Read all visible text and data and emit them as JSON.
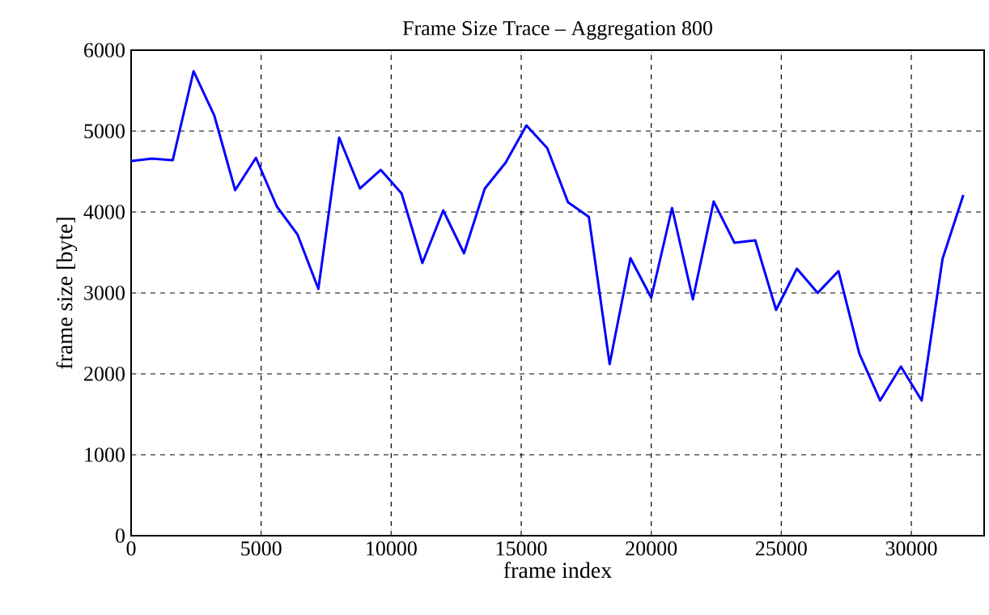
{
  "chart_data": {
    "type": "line",
    "title": "Frame Size Trace – Aggregation 800",
    "xlabel": "frame index",
    "ylabel": "frame size [byte]",
    "x": [
      0,
      800,
      1600,
      2400,
      3200,
      4000,
      4800,
      5600,
      6400,
      7200,
      8000,
      8800,
      9600,
      10400,
      11200,
      12000,
      12800,
      13600,
      14400,
      15200,
      16000,
      16800,
      17600,
      18400,
      19200,
      20000,
      20800,
      21600,
      22400,
      23200,
      24000,
      24800,
      25600,
      26400,
      27200,
      28000,
      28800,
      29600,
      30400,
      31200,
      32000
    ],
    "series": [
      {
        "color": "#0000ff",
        "values": [
          4630,
          4660,
          4640,
          5740,
          5190,
          4270,
          4670,
          4070,
          3720,
          3050,
          4920,
          4290,
          4520,
          4230,
          3370,
          4020,
          3490,
          4290,
          4610,
          5070,
          4790,
          4120,
          3940,
          2120,
          3430,
          2940,
          4050,
          2920,
          4130,
          3620,
          3650,
          2790,
          3300,
          3000,
          3270,
          2250,
          1670,
          2090,
          1670,
          3420,
          4210
        ]
      }
    ],
    "xlim": [
      0,
      32800
    ],
    "ylim": [
      0,
      6000
    ],
    "xticks": [
      0,
      5000,
      10000,
      15000,
      20000,
      25000,
      30000
    ],
    "yticks": [
      0,
      1000,
      2000,
      3000,
      4000,
      5000,
      6000
    ],
    "grid": true,
    "line_style": "solid",
    "marker": "none"
  }
}
